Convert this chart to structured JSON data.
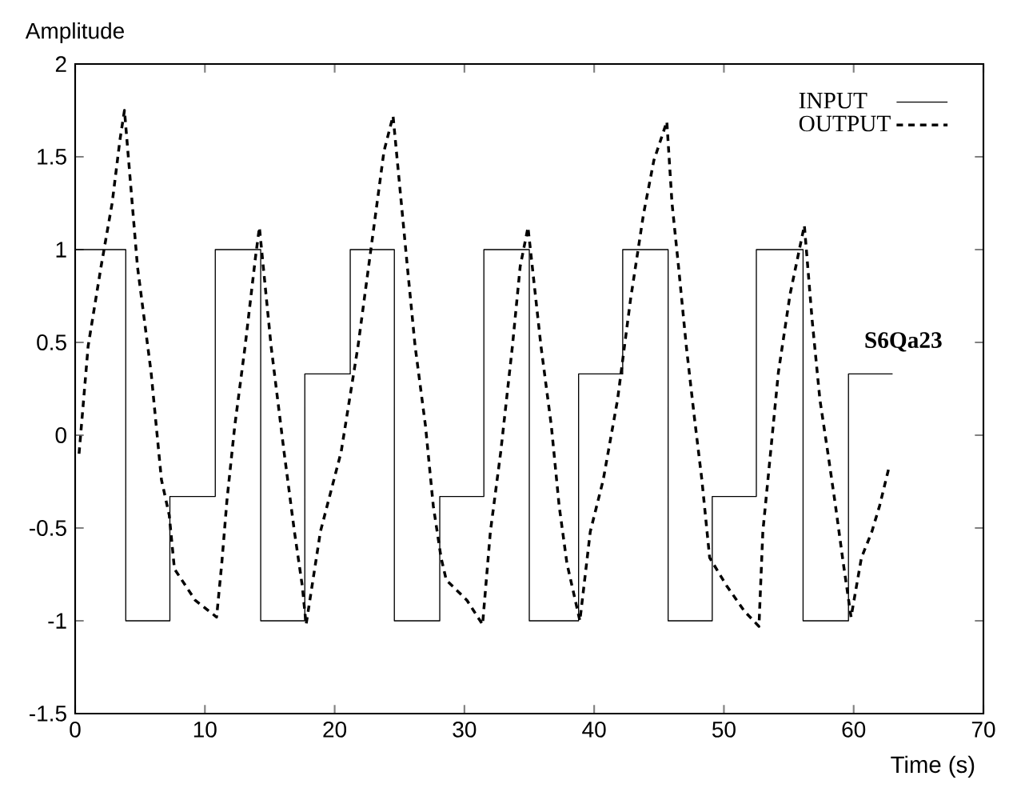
{
  "chart_data": {
    "type": "line",
    "xlabel": "Time (s)",
    "ylabel": "Amplitude",
    "xlim": [
      0,
      70
    ],
    "ylim": [
      -1.5,
      2
    ],
    "xticks": [
      0,
      10,
      20,
      30,
      40,
      50,
      60,
      70
    ],
    "yticks": [
      -1.5,
      -1,
      -0.5,
      0,
      0.5,
      1,
      1.5,
      2
    ],
    "grid": false,
    "legend": "top right",
    "marker": "none",
    "annotations": [
      "S6Qa23"
    ],
    "series": [
      {
        "name": "INPUT",
        "type": "step",
        "color": "#000000",
        "line_style": "solid",
        "x": [
          0,
          3.9,
          7.3,
          10.8,
          14.3,
          17.7,
          21.2,
          24.6,
          28.1,
          31.5,
          35.0,
          38.8,
          42.2,
          45.7,
          49.1,
          52.5,
          56.1,
          59.6,
          63.0
        ],
        "values": [
          1,
          -1,
          -0.33,
          1,
          -1,
          0.33,
          1,
          -1,
          -0.33,
          1,
          -1,
          0.33,
          1,
          -1,
          -0.33,
          1,
          -1,
          0.33,
          0.33
        ]
      },
      {
        "name": "OUTPUT",
        "color": "#000000",
        "line_style": "dashed",
        "x": [
          0.3,
          1.0,
          2.0,
          2.85,
          3.45,
          3.8,
          4.8,
          5.85,
          6.65,
          7.25,
          7.65,
          9.26,
          10.9,
          11.3,
          11.7,
          12.3,
          13.1,
          13.9,
          14.2,
          15.1,
          16.1,
          16.9,
          17.5,
          17.8,
          18.9,
          20.5,
          21.8,
          23.0,
          23.8,
          24.5,
          25.6,
          26.2,
          27.0,
          27.6,
          28.2,
          28.6,
          30.2,
          31.4,
          32.0,
          32.8,
          33.7,
          34.3,
          34.9,
          35.9,
          36.7,
          37.3,
          37.9,
          38.9,
          39.7,
          40.7,
          41.8,
          42.8,
          43.8,
          44.6,
          45.6,
          46.0,
          46.5,
          47.1,
          47.7,
          48.3,
          48.9,
          50.2,
          51.6,
          52.7,
          53.0,
          53.6,
          54.2,
          55.1,
          56.2,
          56.8,
          57.4,
          58.0,
          58.6,
          59.2,
          59.8,
          60.6,
          61.4,
          62.0,
          62.7
        ],
        "values": [
          -0.1,
          0.48,
          0.91,
          1.25,
          1.59,
          1.75,
          0.91,
          0.34,
          -0.24,
          -0.43,
          -0.72,
          -0.89,
          -0.98,
          -0.69,
          -0.35,
          0.05,
          0.48,
          0.96,
          1.12,
          0.48,
          -0.09,
          -0.52,
          -0.81,
          -1.02,
          -0.52,
          -0.09,
          0.48,
          1.11,
          1.53,
          1.72,
          0.91,
          0.48,
          0.05,
          -0.38,
          -0.66,
          -0.78,
          -0.89,
          -1.02,
          -0.52,
          -0.09,
          0.48,
          0.91,
          1.12,
          0.48,
          0.05,
          -0.38,
          -0.69,
          -1.0,
          -0.52,
          -0.24,
          0.19,
          0.73,
          1.19,
          1.48,
          1.69,
          1.25,
          0.91,
          0.48,
          0.11,
          -0.24,
          -0.66,
          -0.81,
          -0.95,
          -1.03,
          -0.52,
          -0.09,
          0.34,
          0.76,
          1.13,
          0.62,
          0.19,
          -0.09,
          -0.38,
          -0.69,
          -0.98,
          -0.66,
          -0.52,
          -0.38,
          -0.18
        ]
      }
    ]
  }
}
